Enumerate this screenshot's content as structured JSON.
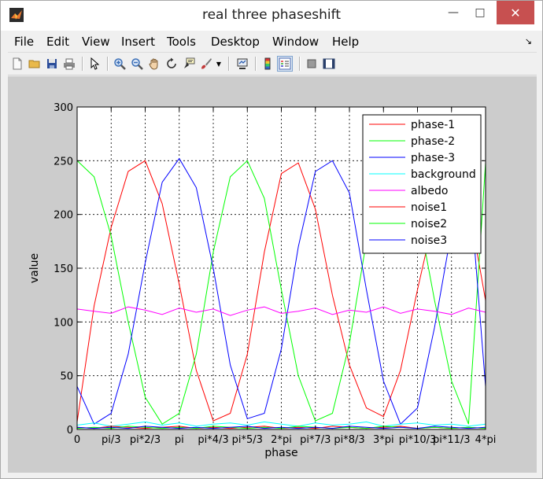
{
  "window": {
    "title": "real three phaseshift",
    "controls": {
      "minimize": "—",
      "maximize": "□",
      "close": "✕"
    }
  },
  "menu": [
    "File",
    "Edit",
    "View",
    "Insert",
    "Tools",
    "Desktop",
    "Window",
    "Help"
  ],
  "toolbar": [
    {
      "name": "new-figure-icon",
      "color": "#f7f7f7"
    },
    {
      "name": "open-file-icon",
      "color": "#e9b94a"
    },
    {
      "name": "save-icon",
      "color": "#2b4d9a"
    },
    {
      "name": "print-icon",
      "color": "#777777"
    },
    {
      "name": "edit-plot-arrow-icon",
      "color": "#000000"
    },
    {
      "name": "zoom-in-icon",
      "color": "#3b6fb6"
    },
    {
      "name": "zoom-out-icon",
      "color": "#3b6fb6"
    },
    {
      "name": "pan-hand-icon",
      "color": "#d8a36a"
    },
    {
      "name": "rotate-3d-icon",
      "color": "#333333"
    },
    {
      "name": "data-cursor-icon",
      "color": "#333333"
    },
    {
      "name": "brush-icon",
      "color": "#c23a3a"
    },
    {
      "name": "link-plot-icon",
      "color": "#333333"
    },
    {
      "name": "colorbar-icon",
      "color": "#5a7fc0"
    },
    {
      "name": "legend-icon",
      "color": "#4a6ab0"
    },
    {
      "name": "hide-plot-tools-icon",
      "color": "#666666"
    },
    {
      "name": "show-plot-tools-icon",
      "color": "#2a3f6a"
    }
  ],
  "chart_data": {
    "type": "line",
    "xlabel": "phase",
    "ylabel": "value",
    "xlim": [
      0,
      12.566
    ],
    "ylim": [
      0,
      300
    ],
    "grid": true,
    "legend_position": "top-right",
    "yticks": [
      0,
      50,
      100,
      150,
      200,
      250,
      300
    ],
    "xticks": [
      {
        "value": 0,
        "label": "0"
      },
      {
        "value": 1.047,
        "label": "pi/3"
      },
      {
        "value": 2.094,
        "label": "pi*2/3"
      },
      {
        "value": 3.142,
        "label": "pi"
      },
      {
        "value": 4.189,
        "label": "pi*4/3"
      },
      {
        "value": 5.236,
        "label": "pi*5/3"
      },
      {
        "value": 6.283,
        "label": "2*pi"
      },
      {
        "value": 7.33,
        "label": "pi*7/3"
      },
      {
        "value": 8.378,
        "label": "pi*8/3"
      },
      {
        "value": 9.425,
        "label": "3*pi"
      },
      {
        "value": 10.472,
        "label": "pi*10/3"
      },
      {
        "value": 11.519,
        "label": "pi*11/3"
      },
      {
        "value": 12.566,
        "label": "4*pi"
      }
    ],
    "x": [
      0,
      0.524,
      1.047,
      1.571,
      2.094,
      2.618,
      3.142,
      3.665,
      4.189,
      4.712,
      5.236,
      5.76,
      6.283,
      6.807,
      7.33,
      7.854,
      8.378,
      8.901,
      9.425,
      9.948,
      10.472,
      10.996,
      11.519,
      12.043,
      12.566
    ],
    "series": [
      {
        "name": "phase-1",
        "color": "#ff0000",
        "values": [
          7,
          115,
          188,
          240,
          250,
          210,
          135,
          55,
          8,
          15,
          70,
          165,
          238,
          248,
          205,
          125,
          60,
          20,
          12,
          55,
          130,
          200,
          245,
          210,
          120
        ]
      },
      {
        "name": "phase-2",
        "color": "#00ff00",
        "values": [
          250,
          235,
          180,
          100,
          30,
          5,
          15,
          70,
          165,
          235,
          250,
          215,
          130,
          50,
          8,
          15,
          80,
          175,
          240,
          245,
          205,
          120,
          45,
          5,
          248
        ]
      },
      {
        "name": "phase-3",
        "color": "#0000ff",
        "values": [
          40,
          5,
          15,
          70,
          155,
          230,
          252,
          225,
          150,
          60,
          10,
          15,
          75,
          170,
          240,
          250,
          220,
          130,
          45,
          5,
          20,
          95,
          185,
          240,
          40
        ]
      },
      {
        "name": "background",
        "color": "#00ffff",
        "values": [
          4,
          6,
          3,
          5,
          7,
          4,
          6,
          3,
          5,
          6,
          4,
          7,
          5,
          3,
          6,
          4,
          5,
          7,
          3,
          5,
          6,
          4,
          5,
          3,
          5
        ]
      },
      {
        "name": "albedo",
        "color": "#ff00ff",
        "values": [
          112,
          110,
          108,
          114,
          111,
          107,
          113,
          109,
          112,
          106,
          111,
          114,
          108,
          110,
          113,
          107,
          111,
          109,
          114,
          108,
          112,
          110,
          107,
          113,
          109
        ]
      },
      {
        "name": "noise1",
        "color": "#ff0000",
        "values": [
          2,
          1,
          3,
          2,
          1,
          2,
          3,
          1,
          2,
          1,
          2,
          3,
          1,
          2,
          1,
          3,
          2,
          1,
          2,
          3,
          1,
          2,
          1,
          2,
          1
        ]
      },
      {
        "name": "noise2",
        "color": "#00ff00",
        "values": [
          1,
          2,
          1,
          3,
          2,
          1,
          2,
          1,
          3,
          2,
          1,
          2,
          1,
          3,
          2,
          1,
          2,
          1,
          3,
          2,
          1,
          2,
          1,
          2,
          1
        ]
      },
      {
        "name": "noise3",
        "color": "#0000ff",
        "values": [
          2,
          1,
          2,
          1,
          3,
          2,
          1,
          2,
          1,
          2,
          3,
          1,
          2,
          1,
          2,
          1,
          3,
          2,
          1,
          2,
          1,
          3,
          2,
          1,
          2
        ]
      }
    ]
  }
}
